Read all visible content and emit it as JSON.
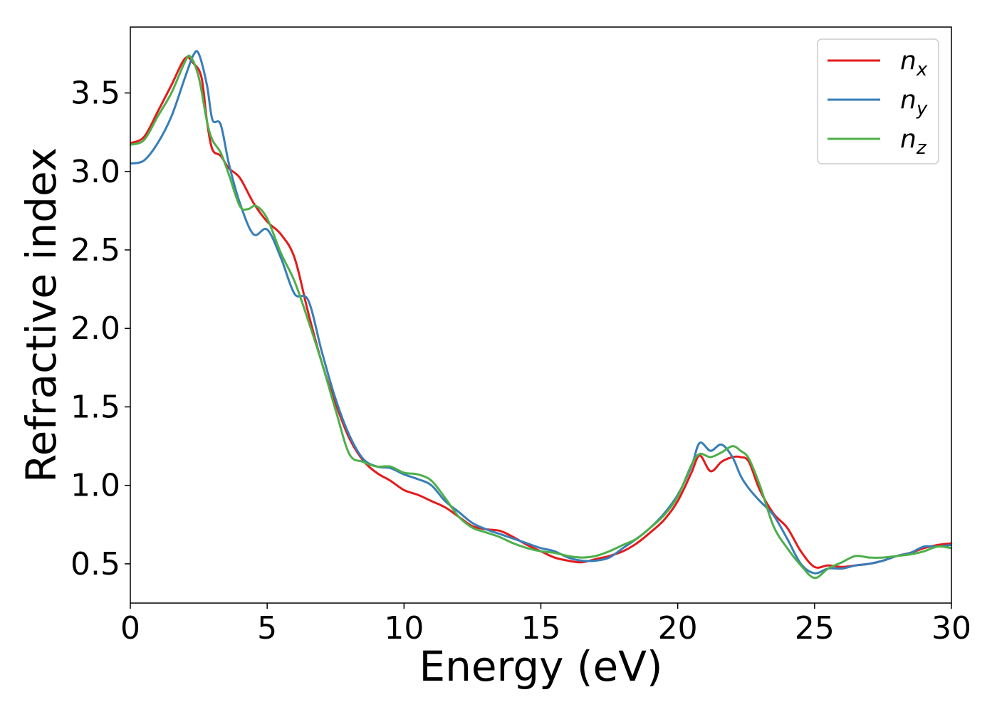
{
  "chart_data": {
    "type": "line",
    "title": "",
    "xlabel": "Energy (eV)",
    "ylabel": "Refractive index",
    "xlim": [
      0,
      30
    ],
    "ylim": [
      0.25,
      3.92
    ],
    "xticks": [
      0,
      5,
      10,
      15,
      20,
      25,
      30
    ],
    "xtick_labels": [
      "0",
      "5",
      "10",
      "15",
      "20",
      "25",
      "30"
    ],
    "yticks": [
      0.5,
      1.0,
      1.5,
      2.0,
      2.5,
      3.0,
      3.5
    ],
    "ytick_labels": [
      "0.5",
      "1.0",
      "1.5",
      "2.0",
      "2.5",
      "3.0",
      "3.5"
    ],
    "grid": false,
    "legend_position": "top-right",
    "series": [
      {
        "name": "n",
        "subscript": "x",
        "color": "#e41a1c",
        "x": [
          0,
          0.5,
          1.0,
          1.5,
          2.0,
          2.3,
          2.6,
          2.8,
          3.0,
          3.3,
          3.6,
          4.0,
          4.5,
          5.0,
          5.5,
          6.0,
          6.5,
          7.0,
          7.5,
          8.0,
          8.5,
          9.0,
          9.5,
          10.0,
          10.5,
          11.0,
          11.5,
          12.0,
          12.5,
          13.0,
          13.5,
          14.0,
          14.5,
          15.0,
          15.5,
          16.0,
          16.5,
          17.0,
          17.5,
          18.0,
          18.5,
          19.0,
          19.5,
          20.0,
          20.5,
          20.8,
          21.2,
          21.6,
          22.0,
          22.3,
          22.6,
          23.0,
          23.5,
          24.0,
          24.5,
          25.0,
          25.5,
          26.0,
          26.5,
          27.0,
          27.5,
          28.0,
          28.5,
          29.0,
          29.5,
          30.0
        ],
        "y": [
          3.18,
          3.22,
          3.38,
          3.55,
          3.72,
          3.69,
          3.6,
          3.32,
          3.14,
          3.1,
          3.02,
          2.96,
          2.8,
          2.68,
          2.6,
          2.45,
          2.1,
          1.78,
          1.52,
          1.3,
          1.16,
          1.08,
          1.03,
          0.97,
          0.94,
          0.9,
          0.86,
          0.8,
          0.74,
          0.72,
          0.71,
          0.67,
          0.62,
          0.58,
          0.54,
          0.52,
          0.51,
          0.53,
          0.55,
          0.58,
          0.63,
          0.7,
          0.78,
          0.9,
          1.08,
          1.19,
          1.09,
          1.15,
          1.18,
          1.18,
          1.15,
          0.97,
          0.82,
          0.73,
          0.58,
          0.48,
          0.49,
          0.48,
          0.49,
          0.5,
          0.52,
          0.55,
          0.57,
          0.6,
          0.62,
          0.63
        ]
      },
      {
        "name": "n",
        "subscript": "y",
        "color": "#377eb8",
        "x": [
          0,
          0.5,
          1.0,
          1.5,
          2.0,
          2.3,
          2.5,
          2.8,
          3.0,
          3.3,
          3.6,
          4.0,
          4.5,
          5.0,
          5.5,
          6.0,
          6.5,
          7.0,
          7.5,
          8.0,
          8.5,
          9.0,
          9.5,
          10.0,
          10.5,
          11.0,
          11.5,
          12.0,
          12.5,
          13.0,
          13.5,
          14.0,
          14.5,
          15.0,
          15.5,
          16.0,
          16.5,
          17.0,
          17.5,
          18.0,
          18.5,
          19.0,
          19.5,
          20.0,
          20.5,
          20.8,
          21.2,
          21.6,
          22.0,
          22.3,
          22.6,
          23.0,
          23.5,
          24.0,
          24.5,
          25.0,
          25.5,
          26.0,
          26.5,
          27.0,
          27.5,
          28.0,
          28.5,
          29.0,
          29.5,
          30.0
        ],
        "y": [
          3.05,
          3.07,
          3.18,
          3.35,
          3.6,
          3.74,
          3.75,
          3.55,
          3.33,
          3.3,
          3.05,
          2.8,
          2.6,
          2.63,
          2.45,
          2.22,
          2.18,
          1.85,
          1.55,
          1.32,
          1.17,
          1.12,
          1.11,
          1.07,
          1.04,
          1.0,
          0.9,
          0.83,
          0.76,
          0.72,
          0.69,
          0.66,
          0.63,
          0.6,
          0.58,
          0.54,
          0.52,
          0.52,
          0.54,
          0.6,
          0.66,
          0.73,
          0.82,
          0.94,
          1.12,
          1.27,
          1.22,
          1.26,
          1.18,
          1.06,
          0.98,
          0.9,
          0.81,
          0.66,
          0.5,
          0.44,
          0.47,
          0.47,
          0.49,
          0.5,
          0.52,
          0.55,
          0.57,
          0.61,
          0.61,
          0.62
        ]
      },
      {
        "name": "n",
        "subscript": "z",
        "color": "#4daf4a",
        "x": [
          0,
          0.5,
          1.0,
          1.5,
          2.0,
          2.2,
          2.5,
          2.8,
          3.0,
          3.3,
          3.6,
          4.0,
          4.3,
          4.6,
          5.0,
          5.5,
          6.0,
          6.5,
          7.0,
          7.5,
          8.0,
          8.5,
          9.0,
          9.5,
          10.0,
          10.5,
          11.0,
          11.5,
          12.0,
          12.5,
          13.0,
          13.5,
          14.0,
          14.5,
          15.0,
          15.5,
          16.0,
          16.5,
          17.0,
          17.5,
          18.0,
          18.5,
          19.0,
          19.5,
          20.0,
          20.5,
          20.8,
          21.2,
          21.6,
          22.0,
          22.3,
          22.6,
          23.0,
          23.5,
          24.0,
          24.5,
          25.0,
          25.5,
          26.0,
          26.5,
          27.0,
          27.5,
          28.0,
          28.5,
          29.0,
          29.5,
          30.0
        ],
        "y": [
          3.17,
          3.2,
          3.35,
          3.5,
          3.7,
          3.73,
          3.6,
          3.32,
          3.2,
          3.12,
          2.98,
          2.78,
          2.76,
          2.78,
          2.7,
          2.48,
          2.3,
          2.05,
          1.78,
          1.48,
          1.2,
          1.15,
          1.12,
          1.12,
          1.08,
          1.07,
          1.03,
          0.92,
          0.8,
          0.73,
          0.7,
          0.67,
          0.63,
          0.6,
          0.58,
          0.57,
          0.55,
          0.54,
          0.55,
          0.58,
          0.62,
          0.66,
          0.73,
          0.81,
          0.93,
          1.13,
          1.2,
          1.18,
          1.21,
          1.25,
          1.22,
          1.17,
          1.0,
          0.74,
          0.6,
          0.49,
          0.41,
          0.47,
          0.51,
          0.55,
          0.54,
          0.54,
          0.55,
          0.56,
          0.58,
          0.61,
          0.6
        ]
      }
    ]
  }
}
